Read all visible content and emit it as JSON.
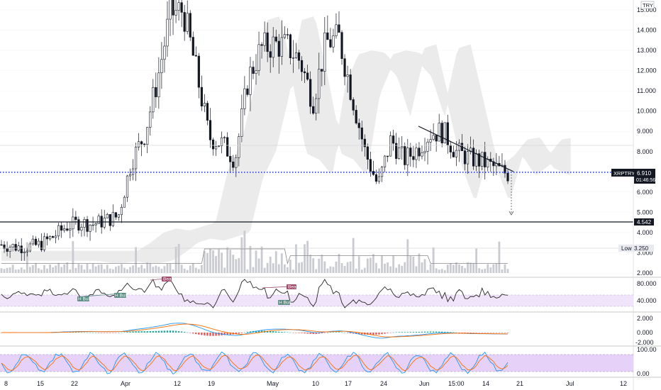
{
  "chart": {
    "currency": "TRY",
    "symbol": "XRPTRY",
    "last_price": "6.910",
    "countdown": "01:46:56",
    "support_level": "4.542",
    "low_label": "Low",
    "low_value": "3.250"
  },
  "price_axis": [
    "15.000",
    "14.000",
    "13.000",
    "12.000",
    "11.000",
    "10.000",
    "9.000",
    "8.000",
    "7.000",
    "6.000",
    "5.000",
    "4.000",
    "3.000",
    "2.000"
  ],
  "rsi_axis": [
    "80.000",
    "40.000"
  ],
  "macd_axis": [
    "2.000",
    "0.000",
    "-2.000"
  ],
  "stoch_axis": [
    "100.00",
    "0.00"
  ],
  "time_axis": [
    "8",
    "15",
    "22",
    "Apr",
    "12",
    "19",
    "May",
    "10",
    "17",
    "24",
    "Jun",
    "15:00",
    "14",
    "21",
    "Jul",
    "12"
  ],
  "badges": {
    "bear": "Bear",
    "h_bull": "H Bull"
  },
  "colors": {
    "up": "#26a69a",
    "down": "#ef5350",
    "candle": "#131722",
    "cloud": "#e8e8e8",
    "dotted_line": "#1e2fd6",
    "volume": "#c9cbd1",
    "rsi_band": "#f0e4fb",
    "stoch_band": "#e6d2f8",
    "macd_line": "#2196f3",
    "signal_line": "#ff6d00",
    "badge": "#9c4a68",
    "badge_bull": "#5a8a80"
  },
  "chart_data": {
    "type": "candlestick",
    "series": [
      {
        "name": "XRPTRY",
        "close_series": [
          3.4,
          3.3,
          3.3,
          3.4,
          3.8,
          4.3,
          4.5,
          4.4,
          4.6,
          4.8,
          7.5,
          8.8,
          11.5,
          14.8,
          15.0,
          12.0,
          8.7,
          8.4,
          7.6,
          11.6,
          13.1,
          13.3,
          13.2,
          12.5,
          10.5,
          13.4,
          13.6,
          10.8,
          8.0,
          6.3,
          8.6,
          7.6,
          8.1,
          8.9,
          9.0,
          8.0,
          7.7,
          7.5,
          7.2,
          6.9
        ]
      }
    ]
  }
}
